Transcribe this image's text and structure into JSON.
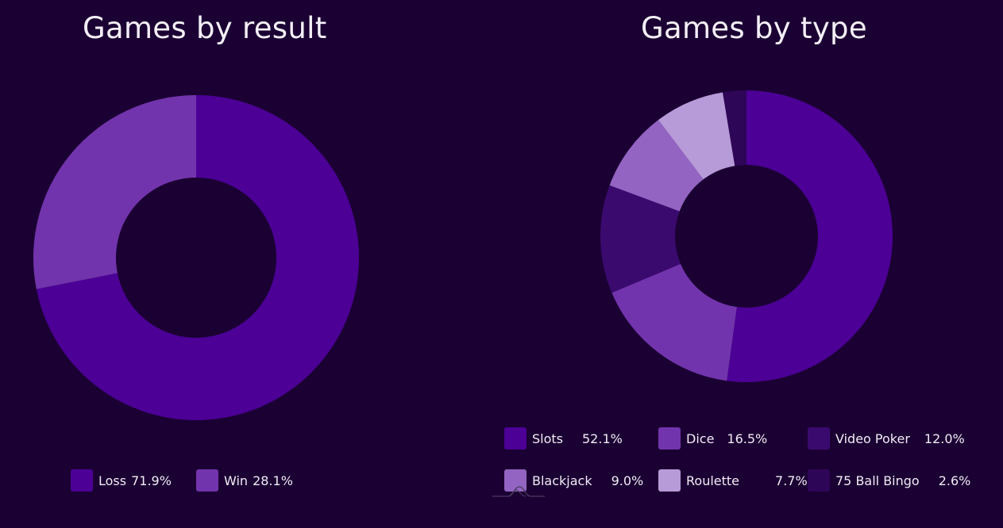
{
  "chart_data": [
    {
      "type": "pie",
      "title": "Games by result",
      "legend_position": "bottom",
      "categories": [
        "Loss",
        "Win"
      ],
      "values": [
        71.9,
        28.1
      ],
      "value_labels": [
        "71.9%",
        "28.1%"
      ],
      "colors": [
        "#4c0096",
        "#7234ad"
      ]
    },
    {
      "type": "pie",
      "title": "Games by type",
      "legend_position": "bottom",
      "categories": [
        "Slots",
        "Dice",
        "Video Poker",
        "Blackjack",
        "Roulette",
        "75 Ball Bingo"
      ],
      "values": [
        52.1,
        16.5,
        12.0,
        9.0,
        7.7,
        2.6
      ],
      "value_labels": [
        "52.1%",
        "16.5%",
        "12.0%",
        "9.0%",
        "7.7%",
        "2.6%"
      ],
      "colors": [
        "#4c0096",
        "#7234ad",
        "#3b0a6f",
        "#9364c2",
        "#b79ad8",
        "#2e0658"
      ]
    }
  ]
}
